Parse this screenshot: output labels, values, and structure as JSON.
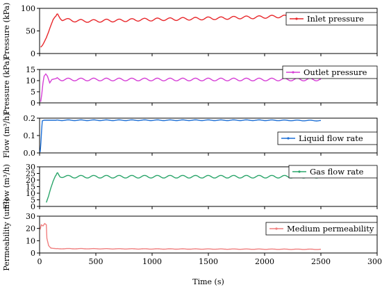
{
  "chart_data": [
    {
      "type": "line",
      "ylabel": "Pressure (kPa)",
      "ylim": [
        0,
        100
      ],
      "yticks": [
        "0",
        "50",
        "100"
      ],
      "legend": "top-right",
      "series": [
        {
          "name": "Inlet pressure",
          "color": "#e8262a",
          "points": [
            [
              10,
              14
            ],
            [
              25,
              18
            ],
            [
              40,
              25
            ],
            [
              60,
              35
            ],
            [
              80,
              48
            ],
            [
              100,
              62
            ],
            [
              120,
              75
            ],
            [
              140,
              82
            ],
            [
              160,
              86
            ],
            [
              180,
              80
            ],
            [
              200,
              76
            ],
            [
              300,
              73
            ],
            [
              400,
              72
            ],
            [
              500,
              72
            ],
            [
              600,
              73
            ],
            [
              700,
              73
            ],
            [
              800,
              74
            ],
            [
              900,
              75
            ],
            [
              1000,
              75
            ],
            [
              1100,
              76
            ],
            [
              1200,
              76
            ],
            [
              1300,
              77
            ],
            [
              1400,
              77
            ],
            [
              1500,
              78
            ],
            [
              1600,
              78
            ],
            [
              1700,
              79
            ],
            [
              1800,
              80
            ],
            [
              1900,
              80
            ],
            [
              2000,
              81
            ],
            [
              2100,
              82
            ],
            [
              2200,
              82
            ],
            [
              2300,
              83
            ],
            [
              2400,
              84
            ],
            [
              2500,
              85
            ]
          ],
          "oscillation": 3
        }
      ]
    },
    {
      "type": "line",
      "ylabel": "Pressure (kPa)",
      "ylim": [
        0,
        15
      ],
      "yticks": [
        "0",
        "5",
        "10",
        "15"
      ],
      "legend": "top-right",
      "series": [
        {
          "name": "Outlet pressure",
          "color": "#d63ed6",
          "points": [
            [
              10,
              0.5
            ],
            [
              20,
              4
            ],
            [
              30,
              9
            ],
            [
              40,
              12
            ],
            [
              55,
              13
            ],
            [
              70,
              12
            ],
            [
              90,
              9
            ],
            [
              110,
              10.5
            ],
            [
              150,
              11
            ],
            [
              200,
              10.5
            ],
            [
              500,
              10.5
            ],
            [
              1000,
              10.5
            ],
            [
              1500,
              10.5
            ],
            [
              2000,
              10.5
            ],
            [
              2500,
              10.5
            ]
          ],
          "oscillation": 0.6
        }
      ]
    },
    {
      "type": "line",
      "ylabel": "Flow (m³/h)",
      "ylim": [
        0,
        0.2
      ],
      "yticks": [
        "0.0",
        "0.1",
        "0.2"
      ],
      "legend": "right",
      "series": [
        {
          "name": "Liquid flow rate",
          "color": "#1c6fd6",
          "points": [
            [
              5,
              0.005
            ],
            [
              12,
              0.06
            ],
            [
              18,
              0.13
            ],
            [
              24,
              0.185
            ],
            [
              40,
              0.188
            ],
            [
              500,
              0.188
            ],
            [
              1000,
              0.188
            ],
            [
              1500,
              0.188
            ],
            [
              2000,
              0.188
            ],
            [
              2500,
              0.186
            ]
          ],
          "oscillation": 0.002
        }
      ]
    },
    {
      "type": "line",
      "ylabel": "Flow (m³/h)",
      "ylim": [
        0,
        30
      ],
      "yticks": [
        "0",
        "5",
        "10",
        "15",
        "20",
        "25",
        "30"
      ],
      "legend": "top-right",
      "series": [
        {
          "name": "Gas flow rate",
          "color": "#2aa56a",
          "points": [
            [
              60,
              3
            ],
            [
              80,
              8
            ],
            [
              100,
              14
            ],
            [
              120,
              19
            ],
            [
              140,
              23
            ],
            [
              160,
              25
            ],
            [
              180,
              23
            ],
            [
              250,
              22.5
            ],
            [
              500,
              22.5
            ],
            [
              1000,
              22.5
            ],
            [
              1500,
              22.5
            ],
            [
              2000,
              22.5
            ],
            [
              2500,
              22.5
            ]
          ],
          "oscillation": 1
        }
      ]
    },
    {
      "type": "line",
      "ylabel": "Permeability (um²)",
      "xlabel": "Time (s)",
      "ylim": [
        0,
        30
      ],
      "yticks": [
        "0",
        "10",
        "20",
        "30"
      ],
      "xlim": [
        0,
        3000
      ],
      "xticks": [
        "0",
        "500",
        "1000",
        "1500",
        "2000",
        "2500",
        "3000"
      ],
      "legend": "top-right",
      "series": [
        {
          "name": "Medium permeability",
          "color": "#f07f7f",
          "points": [
            [
              5,
              19
            ],
            [
              15,
              23
            ],
            [
              30,
              22
            ],
            [
              45,
              24
            ],
            [
              60,
              23
            ],
            [
              65,
              12
            ],
            [
              80,
              6
            ],
            [
              100,
              4
            ],
            [
              150,
              3.5
            ],
            [
              300,
              3.5
            ],
            [
              1000,
              3.3
            ],
            [
              1500,
              3.2
            ],
            [
              2000,
              3.1
            ],
            [
              2500,
              3
            ]
          ],
          "oscillation": 0.15
        }
      ]
    }
  ]
}
